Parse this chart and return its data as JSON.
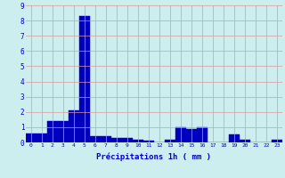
{
  "values": [
    0.6,
    0.6,
    1.4,
    1.4,
    2.1,
    8.3,
    0.4,
    0.4,
    0.3,
    0.3,
    0.2,
    0.1,
    0.0,
    0.2,
    1.0,
    0.9,
    1.0,
    0.0,
    0.0,
    0.5,
    0.2,
    0.0,
    0.0,
    0.2
  ],
  "bar_color": "#0000bb",
  "bar_edge_color": "#0000dd",
  "background_color": "#cceeee",
  "grid_color": "#dd9999",
  "xlabel": "Précipitations 1h ( mm )",
  "xlabel_color": "#0000cc",
  "tick_color": "#0000cc",
  "ylim": [
    0,
    9
  ],
  "yticks": [
    0,
    1,
    2,
    3,
    4,
    5,
    6,
    7,
    8,
    9
  ],
  "xticks": [
    0,
    1,
    2,
    3,
    4,
    5,
    6,
    7,
    8,
    9,
    10,
    11,
    12,
    13,
    14,
    15,
    16,
    17,
    18,
    19,
    20,
    21,
    22,
    23
  ],
  "figsize": [
    3.2,
    2.0
  ],
  "dpi": 100
}
